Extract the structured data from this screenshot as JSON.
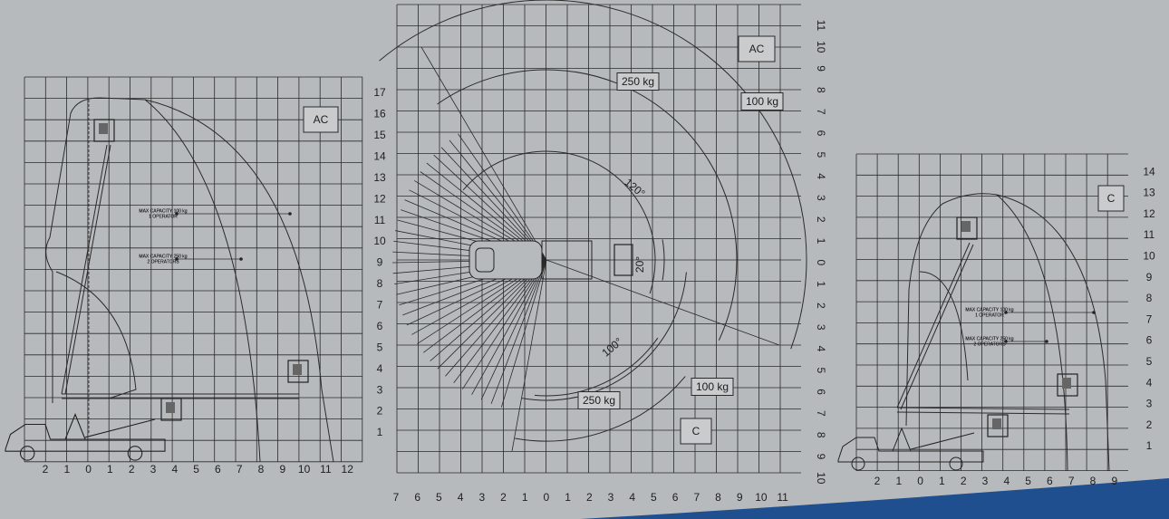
{
  "panels": [
    {
      "mode": "AC",
      "y_labels": [
        "1",
        "2",
        "3",
        "4",
        "5",
        "6",
        "7",
        "8",
        "9",
        "10",
        "11",
        "12",
        "13",
        "14",
        "15",
        "16",
        "17"
      ],
      "x_labels": [
        "2",
        "1",
        "0",
        "1",
        "2",
        "3",
        "4",
        "5",
        "6",
        "7",
        "8",
        "9",
        "10",
        "11",
        "12"
      ],
      "annotations": [
        [
          "MAX CAPACITY 100 kg",
          "1 OPERATOR"
        ],
        [
          "MAX CAPACITY 250 kg",
          "2 OPERATORS"
        ]
      ]
    },
    {
      "mode_top": "AC",
      "mode_bottom": "C",
      "y_labels": [
        "11",
        "10",
        "9",
        "8",
        "7",
        "6",
        "5",
        "4",
        "3",
        "2",
        "1",
        "0",
        "1",
        "2",
        "3",
        "4",
        "5",
        "6",
        "7",
        "8",
        "9",
        "10"
      ],
      "x_labels": [
        "7",
        "6",
        "5",
        "4",
        "3",
        "2",
        "1",
        "0",
        "1",
        "2",
        "3",
        "4",
        "5",
        "6",
        "7",
        "8",
        "9",
        "10",
        "11"
      ],
      "load_labels": [
        "250 kg",
        "100 kg",
        "100 kg",
        "250 kg"
      ],
      "angles": [
        "120°",
        "20°",
        "100°"
      ]
    },
    {
      "mode": "C",
      "y_labels": [
        "1",
        "2",
        "3",
        "4",
        "5",
        "6",
        "7",
        "8",
        "9",
        "10",
        "11",
        "12",
        "13",
        "14"
      ],
      "x_labels": [
        "2",
        "1",
        "0",
        "1",
        "2",
        "3",
        "4",
        "5",
        "6",
        "7",
        "8",
        "9"
      ],
      "annotations": [
        [
          "MAX CAPACITY 100 kg",
          "1 OPERATOR"
        ],
        [
          "MAX CAPACITY 250 kg",
          "2 OPERATORS"
        ]
      ]
    }
  ]
}
